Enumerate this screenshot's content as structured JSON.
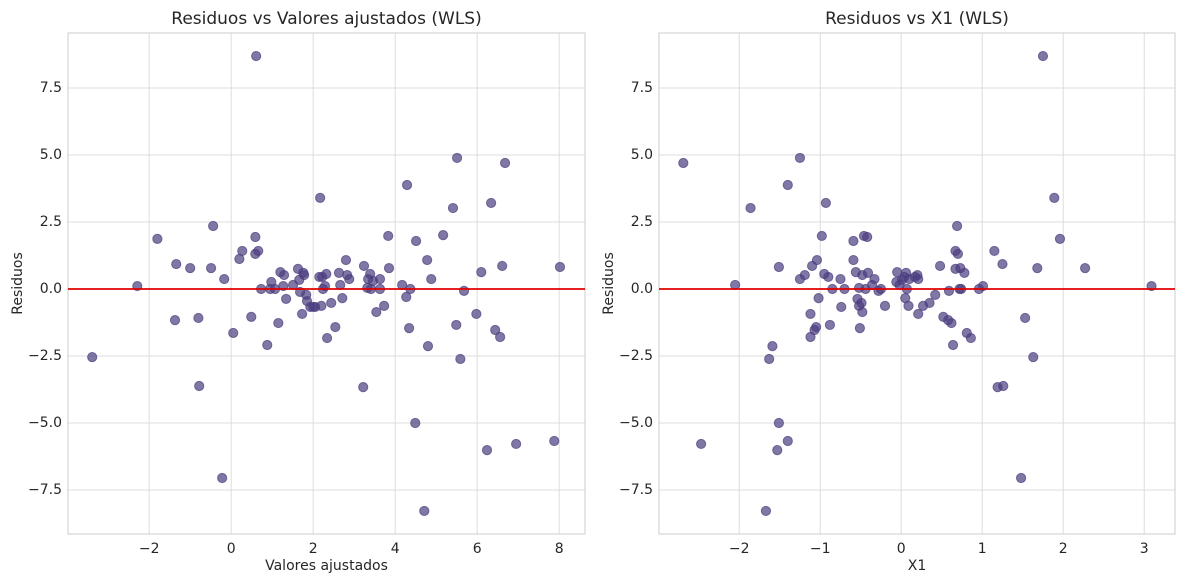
{
  "chart_data": [
    {
      "type": "scatter",
      "title": "Residuos vs Valores ajustados (WLS)",
      "xlabel": "Valores ajustados",
      "ylabel": "Residuos",
      "color": "#4c3d7f",
      "alpha": 0.7,
      "grid": true,
      "reference_line": {
        "y": 0,
        "color": "#e00000"
      },
      "xlim": [
        -3.98,
        8.63
      ],
      "ylim": [
        -9.14,
        9.55
      ],
      "xticks": [
        {
          "value": -2,
          "label": "−2"
        },
        0,
        2,
        4,
        6,
        8
      ],
      "yticks": [
        {
          "value": -7.5,
          "label": "−7.5"
        },
        {
          "value": -5,
          "label": "−5.0"
        },
        {
          "value": -2.5,
          "label": "−2.5"
        },
        {
          "value": 0,
          "label": "0.0"
        },
        2.5,
        {
          "value": 5,
          "label": "5.0"
        },
        7.5
      ],
      "x": [
        -3.39,
        -2.29,
        -1.8,
        -1.34,
        -1.37,
        -1.0,
        -0.8,
        -0.78,
        -0.49,
        -0.44,
        -0.17,
        -0.22,
        0.05,
        0.2,
        0.27,
        0.49,
        0.59,
        0.61,
        0.59,
        0.66,
        0.73,
        0.88,
        0.95,
        0.98,
        1.07,
        1.15,
        1.2,
        1.29,
        1.27,
        1.34,
        1.51,
        1.63,
        1.66,
        1.68,
        1.73,
        1.76,
        1.78,
        1.83,
        1.85,
        1.93,
        2.0,
        2.05,
        2.15,
        2.17,
        2.2,
        2.22,
        2.24,
        2.29,
        2.32,
        2.34,
        2.44,
        2.54,
        2.63,
        2.66,
        2.71,
        2.8,
        2.83,
        2.88,
        3.22,
        3.24,
        3.32,
        3.34,
        3.39,
        3.41,
        3.46,
        3.54,
        3.63,
        3.63,
        3.73,
        3.83,
        3.85,
        4.17,
        4.27,
        4.29,
        4.34,
        4.37,
        4.51,
        4.49,
        4.71,
        4.78,
        4.8,
        4.88,
        5.17,
        5.41,
        5.49,
        5.51,
        5.59,
        5.68,
        5.98,
        6.1,
        6.24,
        6.34,
        6.44,
        6.56,
        6.61,
        6.68,
        6.95,
        7.88,
        8.02
      ],
      "values": [
        -2.54,
        0.11,
        1.87,
        0.93,
        -1.16,
        0.78,
        -1.08,
        -3.62,
        0.78,
        2.35,
        0.37,
        -7.05,
        -1.64,
        1.12,
        1.42,
        -1.04,
        1.94,
        8.69,
        1.31,
        1.42,
        0.0,
        -2.09,
        0,
        0.26,
        0,
        -1.27,
        0.63,
        0.52,
        0.11,
        -0.37,
        0.15,
        0.75,
        0.34,
        -0.11,
        -0.93,
        0.6,
        0.52,
        -0.22,
        -0.45,
        -0.67,
        -0.67,
        -0.67,
        0.45,
        3.4,
        -0.63,
        0.45,
        0,
        0.11,
        0.56,
        -1.83,
        -0.52,
        -1.42,
        0.6,
        0.15,
        -0.34,
        1.08,
        0.52,
        0.37,
        -3.66,
        0.86,
        0.04,
        0.37,
        0.56,
        0,
        0.3,
        -0.86,
        0,
        0.37,
        -0.63,
        1.98,
        0.78,
        0.15,
        -0.3,
        3.88,
        -1.46,
        0,
        1.79,
        -5.0,
        -8.28,
        1.08,
        -2.13,
        0.37,
        2.01,
        3.02,
        -1.34,
        4.89,
        -2.61,
        -0.07,
        -0.93,
        0.63,
        -6.01,
        3.21,
        -1.53,
        -1.79,
        0.86,
        4.7,
        -5.78,
        -5.67,
        0.82
      ]
    },
    {
      "type": "scatter",
      "title": "Residuos vs X1 (WLS)",
      "xlabel": "X1",
      "ylabel": "Residuos",
      "color": "#4c3d7f",
      "alpha": 0.7,
      "grid": true,
      "reference_line": {
        "y": 0,
        "color": "#e00000"
      },
      "xlim": [
        -2.99,
        3.38
      ],
      "ylim": [
        -9.14,
        9.55
      ],
      "xticks": [
        {
          "value": -2,
          "label": "−2"
        },
        {
          "value": -1,
          "label": "−1"
        },
        0,
        1,
        2,
        3
      ],
      "yticks": [
        {
          "value": -7.5,
          "label": "−7.5"
        },
        {
          "value": -5,
          "label": "−5.0"
        },
        {
          "value": -2.5,
          "label": "−2.5"
        },
        {
          "value": 0,
          "label": "0.0"
        },
        2.5,
        {
          "value": 5,
          "label": "5.0"
        },
        7.5
      ],
      "x": [
        -2.69,
        -2.47,
        -2.05,
        -1.86,
        -1.67,
        -1.63,
        -1.59,
        -1.53,
        -1.51,
        -1.51,
        -1.4,
        -1.4,
        -1.25,
        -1.25,
        -1.19,
        -1.12,
        -1.12,
        -1.1,
        -1.07,
        -1.05,
        -1.04,
        -1.02,
        -0.98,
        -0.95,
        -0.93,
        -0.9,
        -0.88,
        -0.85,
        -0.75,
        -0.74,
        -0.7,
        -0.59,
        -0.59,
        -0.56,
        -0.54,
        -0.52,
        -0.52,
        -0.51,
        -0.49,
        -0.48,
        -0.48,
        -0.46,
        -0.44,
        -0.42,
        -0.41,
        -0.36,
        -0.33,
        -0.28,
        -0.25,
        -0.2,
        -0.06,
        -0.05,
        -0.02,
        0.01,
        0.04,
        0.05,
        0.06,
        0.07,
        0.09,
        0.1,
        0.17,
        0.2,
        0.21,
        0.21,
        0.27,
        0.35,
        0.42,
        0.48,
        0.52,
        0.58,
        0.59,
        0.62,
        0.64,
        0.67,
        0.67,
        0.69,
        0.7,
        0.72,
        0.74,
        0.73,
        0.78,
        0.81,
        0.86,
        0.96,
        1.01,
        1.15,
        1.19,
        1.25,
        1.26,
        1.48,
        1.53,
        1.63,
        1.68,
        1.75,
        1.89,
        1.96,
        2.27,
        3.09
      ],
      "values": [
        4.7,
        -5.78,
        0.15,
        3.02,
        -8.28,
        -2.61,
        -2.13,
        -6.01,
        -5.0,
        0.82,
        -5.67,
        3.88,
        0.37,
        4.89,
        0.52,
        -1.79,
        -0.93,
        0.86,
        -1.53,
        -1.42,
        1.08,
        -0.34,
        1.98,
        0.56,
        3.21,
        0.45,
        -1.34,
        0,
        0.37,
        -0.67,
        0,
        1.79,
        1.08,
        0.63,
        -0.37,
        0.04,
        -0.63,
        -1.46,
        -0.52,
        -0.86,
        0.52,
        1.98,
        0,
        1.94,
        0.6,
        0.15,
        0.37,
        -0.07,
        0,
        -0.63,
        0.26,
        0.63,
        0.15,
        0.34,
        0.45,
        -0.34,
        0.6,
        0,
        -0.63,
        0.37,
        0.45,
        0.52,
        0.37,
        -0.93,
        -0.63,
        -0.52,
        -0.22,
        0.86,
        -1.04,
        -1.16,
        -0.07,
        -1.27,
        -2.09,
        1.42,
        0.75,
        2.35,
        1.31,
        0,
        0,
        0.78,
        0.6,
        -1.64,
        -1.83,
        0,
        0.11,
        1.42,
        -3.66,
        0.93,
        -3.62,
        -7.05,
        -1.08,
        -2.54,
        0.78,
        8.69,
        3.4,
        1.87,
        0.78,
        0.11
      ]
    }
  ]
}
